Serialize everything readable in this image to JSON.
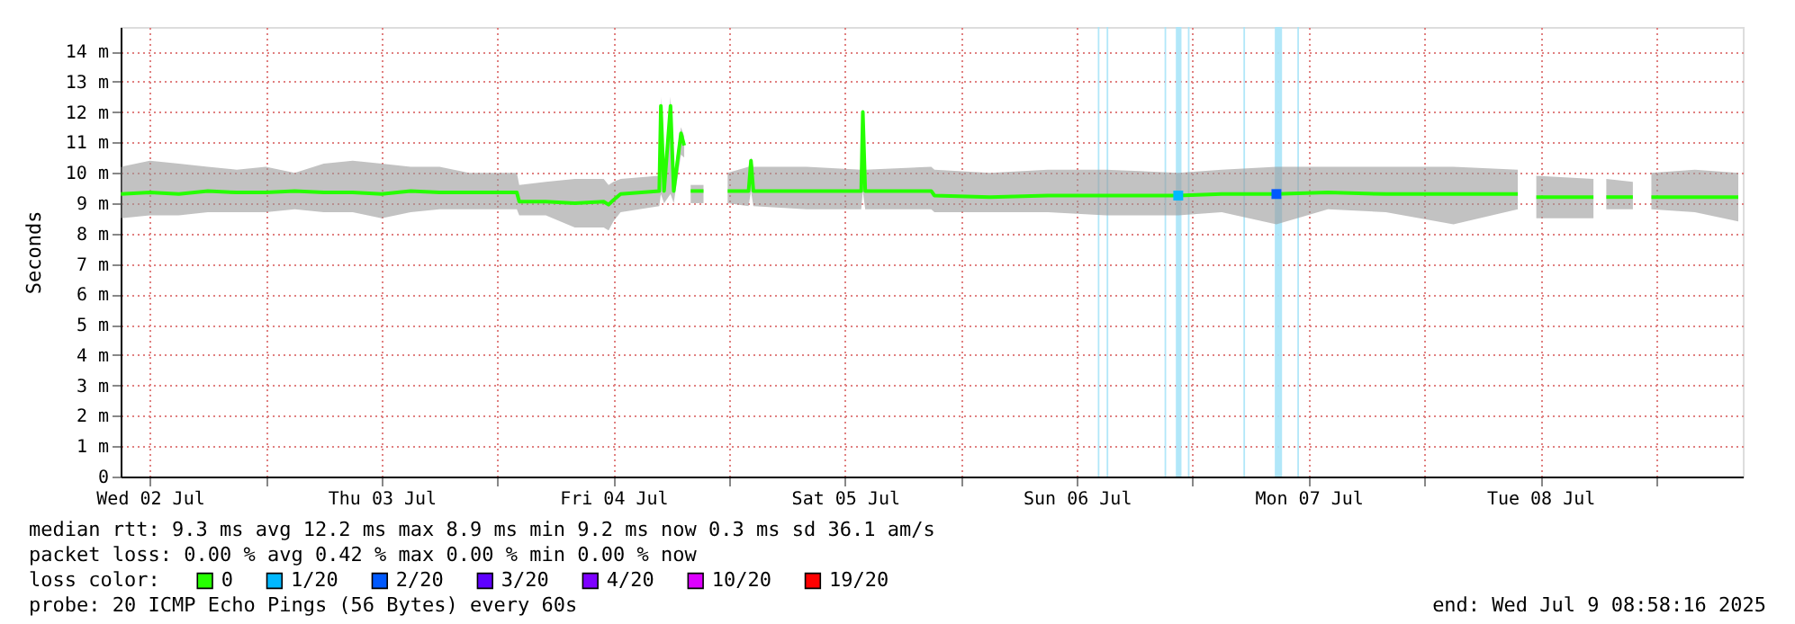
{
  "chart_data": {
    "type": "line",
    "ylabel": "Seconds",
    "xlim": [
      "2025-07-02T08:58",
      "2025-07-09T08:58"
    ],
    "xticks": [
      {
        "value": "2025-07-02T12:00",
        "label": "Wed 02 Jul"
      },
      {
        "value": "2025-07-03T00:00",
        "label": null
      },
      {
        "value": "2025-07-03T12:00",
        "label": "Thu 03 Jul"
      },
      {
        "value": "2025-07-04T00:00",
        "label": null
      },
      {
        "value": "2025-07-04T12:00",
        "label": "Fri 04 Jul"
      },
      {
        "value": "2025-07-05T00:00",
        "label": null
      },
      {
        "value": "2025-07-05T12:00",
        "label": "Sat 05 Jul"
      },
      {
        "value": "2025-07-06T00:00",
        "label": null
      },
      {
        "value": "2025-07-06T12:00",
        "label": "Sun 06 Jul"
      },
      {
        "value": "2025-07-07T00:00",
        "label": null
      },
      {
        "value": "2025-07-07T12:00",
        "label": "Mon 07 Jul"
      },
      {
        "value": "2025-07-08T00:00",
        "label": null
      },
      {
        "value": "2025-07-08T12:00",
        "label": "Tue 08 Jul"
      },
      {
        "value": "2025-07-09T00:00",
        "label": null
      }
    ],
    "ylim": [
      0,
      14.8
    ],
    "yticks": [
      0,
      {
        "value": 1,
        "label": "1 m"
      },
      {
        "value": 2,
        "label": "2 m"
      },
      {
        "value": 3,
        "label": "3 m"
      },
      {
        "value": 4,
        "label": "4 m"
      },
      {
        "value": 5,
        "label": "5 m"
      },
      {
        "value": 6,
        "label": "6 m"
      },
      {
        "value": 7,
        "label": "7 m"
      },
      {
        "value": 8,
        "label": "8 m"
      },
      {
        "value": 9,
        "label": "9 m"
      },
      {
        "value": 10,
        "label": "10 m"
      },
      {
        "value": 11,
        "label": "11 m"
      },
      {
        "value": 12,
        "label": "12 m"
      },
      {
        "value": 13,
        "label": "13 m"
      },
      {
        "value": 14,
        "label": "14 m"
      }
    ],
    "grid": true,
    "legend": "bottom left",
    "legend_title": "loss color:",
    "series": [
      {
        "name": "0",
        "color": "#26ff00",
        "x": [
          "2025-07-02T09:00",
          "2025-07-02T12:00",
          "2025-07-02T15:00",
          "2025-07-02T18:00",
          "2025-07-02T21:00",
          "2025-07-03T00:00",
          "2025-07-03T03:00",
          "2025-07-03T06:00",
          "2025-07-03T09:00",
          "2025-07-03T12:00",
          "2025-07-03T15:00",
          "2025-07-03T18:00",
          "2025-07-03T21:00",
          "2025-07-04T00:00",
          "2025-07-04T02:00",
          "2025-07-04T02:15",
          "2025-07-04T05:00",
          "2025-07-04T08:00",
          "2025-07-04T11:00",
          "2025-07-04T11:30",
          "2025-07-04T12:00",
          "2025-07-04T12:45",
          "2025-07-04T16:45",
          "2025-07-04T16:55",
          "2025-07-04T17:15",
          "2025-07-04T17:55",
          "2025-07-04T18:15",
          "2025-07-04T19:00",
          "2025-07-04T19:20",
          "2025-07-04T19:40",
          "2025-07-04T20:00",
          "2025-07-04T21:20",
          "2025-07-04T21:40",
          "2025-07-04T23:50",
          "2025-07-05T02:00",
          "2025-07-05T02:15",
          "2025-07-05T02:30",
          "2025-07-05T08:00",
          "2025-07-05T13:40",
          "2025-07-05T13:50",
          "2025-07-05T14:05",
          "2025-07-05T20:55",
          "2025-07-05T21:15",
          "2025-07-06T03:00",
          "2025-07-06T09:00",
          "2025-07-06T15:00",
          "2025-07-06T22:30",
          "2025-07-07T03:00",
          "2025-07-07T08:40",
          "2025-07-07T14:00",
          "2025-07-07T20:00",
          "2025-07-08T03:00",
          "2025-07-08T09:40",
          "2025-07-08T10:00",
          "2025-07-08T11:35",
          "2025-07-08T17:30",
          "2025-07-08T18:00",
          "2025-07-08T18:50",
          "2025-07-08T21:35",
          "2025-07-08T22:00",
          "2025-07-08T23:30",
          "2025-07-09T04:00",
          "2025-07-09T08:30"
        ],
        "values": [
          9.3,
          9.35,
          9.3,
          9.4,
          9.35,
          9.35,
          9.4,
          9.35,
          9.35,
          9.3,
          9.4,
          9.35,
          9.35,
          9.35,
          9.35,
          9.05,
          9.05,
          9.0,
          9.05,
          8.95,
          9.1,
          9.3,
          9.4,
          12.2,
          9.4,
          12.2,
          9.4,
          11.3,
          10.9,
          null,
          9.4,
          9.4,
          null,
          9.4,
          9.4,
          10.4,
          9.4,
          9.4,
          9.4,
          12.0,
          9.4,
          9.4,
          9.25,
          9.2,
          9.25,
          9.25,
          9.25,
          9.3,
          9.3,
          9.35,
          9.3,
          9.3,
          9.3,
          null,
          9.2,
          9.2,
          null,
          9.2,
          9.2,
          null,
          9.2,
          9.2,
          9.2
        ],
        "lower": [
          8.5,
          8.6,
          8.6,
          8.7,
          8.7,
          8.7,
          8.8,
          8.7,
          8.7,
          8.5,
          8.7,
          8.8,
          8.8,
          8.8,
          8.8,
          8.6,
          8.6,
          8.2,
          8.2,
          8.1,
          8.4,
          8.7,
          8.9,
          9.3,
          9.0,
          9.3,
          9.0,
          10.6,
          10.5,
          null,
          9.0,
          9.0,
          null,
          9.0,
          8.9,
          9.4,
          8.9,
          8.8,
          8.8,
          9.4,
          8.8,
          8.8,
          8.7,
          8.7,
          8.7,
          8.6,
          8.6,
          8.7,
          8.3,
          8.8,
          8.7,
          8.3,
          8.8,
          null,
          8.5,
          8.5,
          null,
          8.8,
          8.8,
          null,
          8.8,
          8.7,
          8.4
        ],
        "upper": [
          10.2,
          10.4,
          10.3,
          10.2,
          10.1,
          10.2,
          10.0,
          10.3,
          10.4,
          10.3,
          10.2,
          10.2,
          10.0,
          10.0,
          10.0,
          9.6,
          9.7,
          9.8,
          9.8,
          9.6,
          9.7,
          9.8,
          9.9,
          12.5,
          9.9,
          12.5,
          9.9,
          11.5,
          11.2,
          null,
          9.6,
          9.6,
          null,
          10.0,
          10.2,
          10.5,
          10.2,
          10.2,
          10.1,
          12.1,
          10.1,
          10.2,
          10.1,
          10.0,
          10.1,
          10.1,
          10.0,
          10.1,
          10.2,
          10.2,
          10.2,
          10.2,
          10.1,
          null,
          9.9,
          9.8,
          null,
          9.8,
          9.7,
          null,
          10.0,
          10.1,
          10.0
        ]
      },
      {
        "name": "1/20",
        "color": "#00b8ff",
        "type": "scatter",
        "x": [
          "2025-07-06T22:30"
        ],
        "values": [
          9.25
        ]
      },
      {
        "name": "2/20",
        "color": "#0059ff",
        "type": "scatter",
        "x": [
          "2025-07-07T08:40"
        ],
        "values": [
          9.3
        ]
      },
      {
        "name": "3/20",
        "color": "#5e00ff",
        "type": "scatter"
      },
      {
        "name": "4/20",
        "color": "#7e00ff",
        "type": "scatter"
      },
      {
        "name": "10/20",
        "color": "#dd00ff",
        "type": "scatter"
      },
      {
        "name": "19/20",
        "color": "#ff0000",
        "type": "scatter"
      }
    ],
    "bands": [
      {
        "axis": "x",
        "from": "2025-07-06T14:10",
        "to": "2025-07-06T14:20",
        "color": "#a8e4f8"
      },
      {
        "axis": "x",
        "from": "2025-07-06T15:05",
        "to": "2025-07-06T15:15",
        "color": "#a8e4f8"
      },
      {
        "axis": "x",
        "from": "2025-07-06T21:05",
        "to": "2025-07-06T21:15",
        "color": "#a8e4f8"
      },
      {
        "axis": "x",
        "from": "2025-07-06T22:15",
        "to": "2025-07-06T22:50",
        "color": "#a8e4f8"
      },
      {
        "axis": "x",
        "from": "2025-07-06T23:30",
        "to": "2025-07-06T23:40",
        "color": "#a8e4f8"
      },
      {
        "axis": "x",
        "from": "2025-07-07T05:15",
        "to": "2025-07-07T05:25",
        "color": "#a8e4f8"
      },
      {
        "axis": "x",
        "from": "2025-07-07T08:30",
        "to": "2025-07-07T09:15",
        "color": "#a8e4f8"
      },
      {
        "axis": "x",
        "from": "2025-07-07T10:50",
        "to": "2025-07-07T11:00",
        "color": "#a8e4f8"
      }
    ],
    "annotations": [
      "median rtt:  9.3 ms avg  12.2 ms max  8.9 ms min  9.2 ms now  0.3 ms sd  36.1   am/s",
      "packet loss: 0.00 % avg  0.42 % max  0.00 % min  0.00 % now",
      "probe:       20 ICMP Echo Pings (56 Bytes) every 60s",
      "end: Wed Jul  9 08:58:16 2025"
    ]
  }
}
